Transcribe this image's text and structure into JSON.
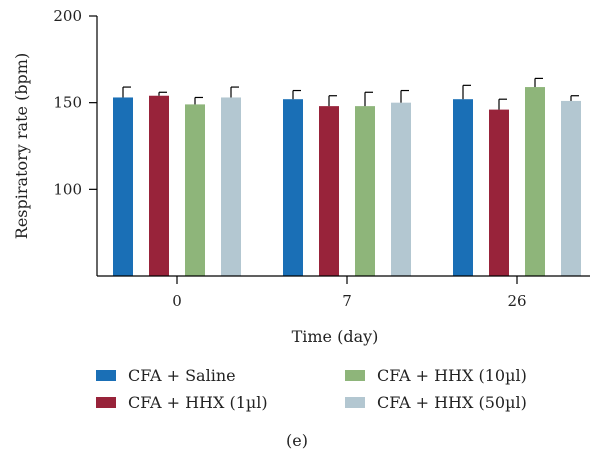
{
  "chart_data": {
    "type": "bar",
    "categories": [
      "0",
      "7",
      "26"
    ],
    "xlabel": "Time (day)",
    "ylabel": "Respiratory rate (bpm)",
    "ylim": [
      50,
      200
    ],
    "yticks": [
      "100",
      "150",
      "200"
    ],
    "error_bars": true,
    "grid": false,
    "legend_position": "bottom",
    "series": [
      {
        "name": "CFA + Saline",
        "color": "#1a6fb6",
        "values": [
          153,
          152,
          152
        ],
        "errors": [
          6,
          5,
          8
        ]
      },
      {
        "name": "CFA + HHX (1µl)",
        "color": "#98233a",
        "values": [
          154,
          148,
          146
        ],
        "errors": [
          2,
          6,
          6
        ]
      },
      {
        "name": "CFA + HHX (10µl)",
        "color": "#8eb57a",
        "values": [
          149,
          148,
          159
        ],
        "errors": [
          4,
          8,
          5
        ]
      },
      {
        "name": "CFA + HHX (50µl)",
        "color": "#b3c7d1",
        "values": [
          153,
          150,
          151
        ],
        "errors": [
          6,
          7,
          3
        ]
      }
    ]
  },
  "panel_label": "(e)"
}
